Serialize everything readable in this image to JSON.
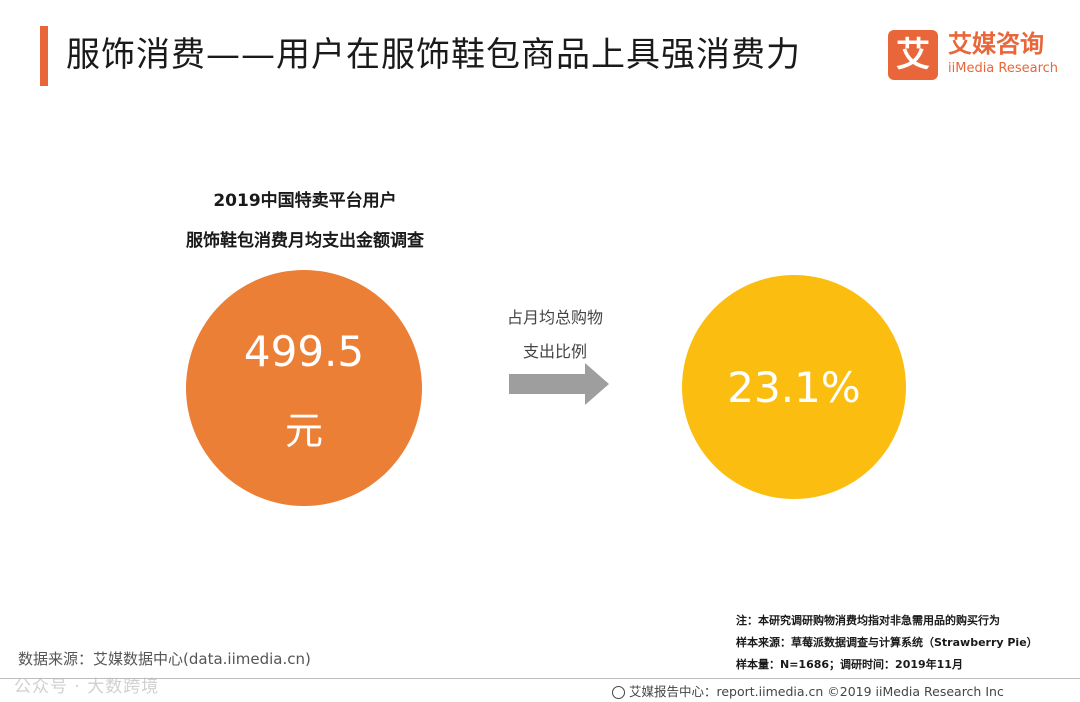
{
  "header": {
    "title": "服饰消费——用户在服饰鞋包商品上具强消费力",
    "logo_mark": "艾",
    "logo_cn": "艾媒咨询",
    "logo_en": "iiMedia Research"
  },
  "survey": {
    "subtitle_line1": "2019中国特卖平台用户",
    "subtitle_line2": "服饰鞋包消费月均支出金额调查",
    "amount": "499.5",
    "unit": "元",
    "ratio_label_line1": "占月均总购物",
    "ratio_label_line2": "支出比例",
    "ratio_value": "23.1%"
  },
  "colors": {
    "accent": "#e8663a",
    "left_circle": "#ec7f36",
    "right_circle": "#fbbd0f",
    "arrow": "#9e9e9e"
  },
  "notes": {
    "note": "注：本研究调研购物消费均指对非急需用品的购买行为",
    "sample_source": "样本来源：草莓派数据调查与计算系统（Strawberry Pie）",
    "sample_size": "样本量：N=1686；调研时间：2019年11月"
  },
  "footer": {
    "data_source": "数据来源：艾媒数据中心(data.iimedia.cn)",
    "watermark": "公众号 · 大数跨境",
    "report_center": "艾媒报告中心：report.iimedia.cn ©2019 iiMedia Research Inc",
    "globe_icon": "globe-icon"
  }
}
